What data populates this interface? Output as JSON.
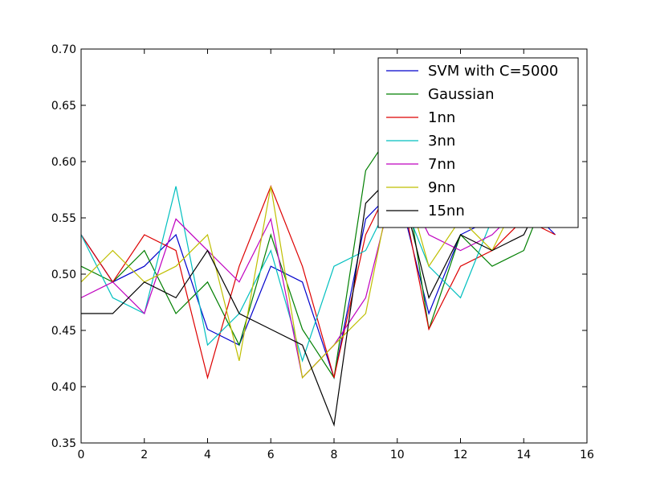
{
  "chart_data": {
    "type": "line",
    "title": "",
    "xlabel": "",
    "ylabel": "",
    "xlim": [
      0,
      16
    ],
    "ylim": [
      0.35,
      0.7
    ],
    "xticks": [
      0,
      2,
      4,
      6,
      8,
      10,
      12,
      14,
      16
    ],
    "yticks": [
      0.35,
      0.4,
      0.45,
      0.5,
      0.55,
      0.6,
      0.65,
      0.7
    ],
    "xtick_labels": [
      "0",
      "2",
      "4",
      "6",
      "8",
      "10",
      "12",
      "14",
      "16"
    ],
    "ytick_labels": [
      "0.35",
      "0.40",
      "0.45",
      "0.50",
      "0.55",
      "0.60",
      "0.65",
      "0.70"
    ],
    "grid": false,
    "legend_position": "top-right",
    "x": [
      0,
      1,
      2,
      3,
      4,
      5,
      6,
      7,
      8,
      9,
      10,
      11,
      12,
      13,
      14,
      15
    ],
    "series": [
      {
        "name": "SVM with C=5000",
        "color": "#0000cc",
        "values": [
          0.535,
          0.493,
          0.507,
          0.535,
          0.451,
          0.437,
          0.507,
          0.493,
          0.408,
          0.549,
          0.578,
          0.465,
          0.535,
          0.549,
          0.563,
          0.535
        ]
      },
      {
        "name": "Gaussian",
        "color": "#007f00",
        "values": [
          0.507,
          0.493,
          0.521,
          0.465,
          0.493,
          0.437,
          0.535,
          0.451,
          0.408,
          0.592,
          0.634,
          0.451,
          0.535,
          0.507,
          0.521,
          0.592
        ]
      },
      {
        "name": "1nn",
        "color": "#dd0000",
        "values": [
          0.535,
          0.493,
          0.535,
          0.521,
          0.408,
          0.507,
          0.578,
          0.507,
          0.408,
          0.535,
          0.592,
          0.451,
          0.507,
          0.521,
          0.549,
          0.535
        ]
      },
      {
        "name": "3nn",
        "color": "#00bfbf",
        "values": [
          0.535,
          0.479,
          0.465,
          0.578,
          0.437,
          0.465,
          0.521,
          0.423,
          0.507,
          0.521,
          0.578,
          0.507,
          0.479,
          0.549,
          0.563,
          0.549
        ]
      },
      {
        "name": "7nn",
        "color": "#bf00bf",
        "values": [
          0.479,
          0.493,
          0.465,
          0.549,
          0.521,
          0.493,
          0.549,
          0.408,
          0.437,
          0.479,
          0.592,
          0.535,
          0.521,
          0.535,
          0.563,
          0.563
        ]
      },
      {
        "name": "9nn",
        "color": "#bfbf00",
        "values": [
          0.493,
          0.521,
          0.493,
          0.507,
          0.535,
          0.423,
          0.578,
          0.408,
          0.437,
          0.465,
          0.606,
          0.507,
          0.549,
          0.521,
          0.578,
          0.563
        ]
      },
      {
        "name": "15nn",
        "color": "#000000",
        "values": [
          0.465,
          0.465,
          0.493,
          0.479,
          0.521,
          0.465,
          0.451,
          0.437,
          0.366,
          0.563,
          0.592,
          0.479,
          0.535,
          0.521,
          0.535,
          0.592
        ]
      }
    ]
  }
}
